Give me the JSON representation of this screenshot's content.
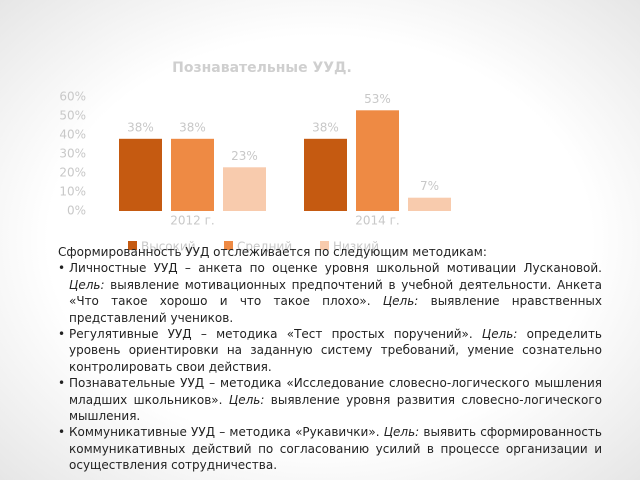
{
  "chart_data": {
    "type": "bar",
    "title": "Познавательные УУД.",
    "categories": [
      "2012 г.",
      "2014 г."
    ],
    "series": [
      {
        "name": "Высокий",
        "color": "#c55a11",
        "values": [
          38,
          38
        ],
        "value_labels": [
          "38%",
          "38%"
        ]
      },
      {
        "name": "Средний",
        "color": "#ee8a44",
        "values": [
          38,
          53
        ],
        "value_labels": [
          "38%",
          "53%"
        ]
      },
      {
        "name": "Низкий",
        "color": "#f8cbad",
        "values": [
          23,
          7
        ],
        "value_labels": [
          "23%",
          "7%"
        ]
      }
    ],
    "ylim": [
      0,
      60
    ],
    "yticks": [
      {
        "value": 0,
        "label": "0%"
      },
      {
        "value": 10,
        "label": "10%"
      },
      {
        "value": 20,
        "label": "20%"
      },
      {
        "value": 30,
        "label": "30%"
      },
      {
        "value": 40,
        "label": "40%"
      },
      {
        "value": 50,
        "label": "50%"
      },
      {
        "value": 60,
        "label": "60%"
      }
    ],
    "legend": "bottom"
  },
  "document": {
    "intro": "Сформированность УУД отслеживается по следующим методикам:",
    "items": [
      [
        "Личностные УУД – анкета по оценке уровня школьной мотивации Лускановой. ",
        "Цель:",
        " выявление мотивационных предпочтений в учебной деятельности. Анкета «Что такое хорошо и что такое плохо». ",
        "Цель:",
        " выявление нравственных представлений учеников."
      ],
      [
        "Регулятивные УУД – методика «Тест простых поручений». ",
        "Цель:",
        " определить уровень ориентировки на заданную систему требований, умение сознательно контролировать свои действия."
      ],
      [
        "Познавательные УУД – методика «Исследование словесно-логического мышления младших школьников». ",
        "Цель:",
        " выявление уровня развития словесно-логического мышления."
      ],
      [
        "Коммуникативные УУД – методика «Рукавички». ",
        "Цель:",
        " выявить сформированность коммуникативных действий по согласованию усилий в процессе организации и осуществления сотрудничества."
      ]
    ]
  }
}
